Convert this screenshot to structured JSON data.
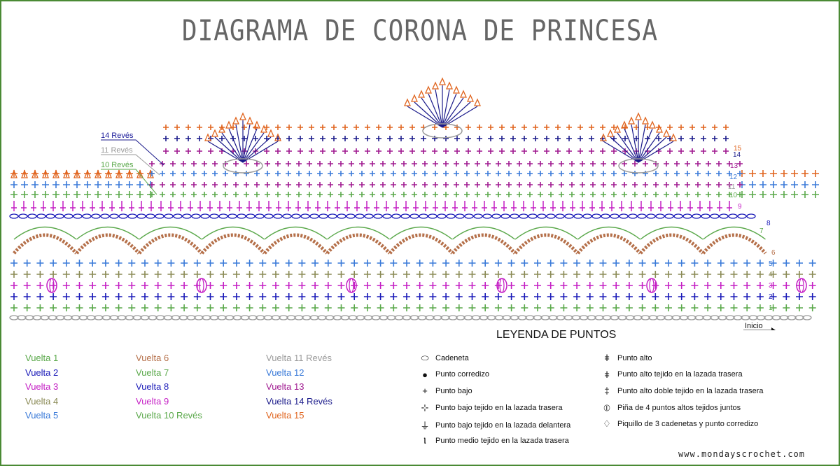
{
  "title": "DIAGRAMA DE CORONA DE PRINCESA",
  "legend_title": "LEYENDA DE PUNTOS",
  "start_label": "Inicio",
  "website": "www.mondayscrochet.com",
  "side_labels": [
    {
      "text": "14 Revés",
      "color": "#1a1a9a"
    },
    {
      "text": "11 Revés",
      "color": "#9a9a9a"
    },
    {
      "text": "10 Revés",
      "color": "#5aa84a"
    }
  ],
  "row_numbers": [
    "15",
    "14",
    "13",
    "12",
    "11",
    "10",
    "9",
    "8",
    "7",
    "6",
    "5",
    "4",
    "3",
    "2",
    "1"
  ],
  "rounds": [
    {
      "label": "Vuelta 1",
      "color": "#5aa84a"
    },
    {
      "label": "Vuelta 2",
      "color": "#1a1ab8"
    },
    {
      "label": "Vuelta 3",
      "color": "#c41ec4"
    },
    {
      "label": "Vuelta 4",
      "color": "#8a8a55"
    },
    {
      "label": "Vuelta 5",
      "color": "#3a7ad8"
    },
    {
      "label": "Vuelta 6",
      "color": "#b5704a"
    },
    {
      "label": "Vuelta 7",
      "color": "#5aa84a"
    },
    {
      "label": "Vuelta 8",
      "color": "#1a1ab8"
    },
    {
      "label": "Vuelta 9",
      "color": "#c41ec4"
    },
    {
      "label": "Vuelta 10 Revés",
      "color": "#5aa84a"
    },
    {
      "label": "Vuelta 11 Revés",
      "color": "#9a9a9a"
    },
    {
      "label": "Vuelta 12",
      "color": "#3a7ad8"
    },
    {
      "label": "Vuelta 13",
      "color": "#a01a90"
    },
    {
      "label": "Vuelta 14 Revés",
      "color": "#1a1a8a"
    },
    {
      "label": "Vuelta 15",
      "color": "#e0641e"
    }
  ],
  "stitches_left": [
    {
      "symbol": "⬭",
      "label": "Cadeneta"
    },
    {
      "symbol": "●",
      "label": "Punto corredizo"
    },
    {
      "symbol": "+",
      "label": "Punto bajo"
    },
    {
      "symbol": "⊹",
      "label": "Punto bajo tejido en la lazada trasera"
    },
    {
      "symbol": "⏚",
      "label": "Punto bajo tejido en la lazada delantera"
    },
    {
      "symbol": "Ⲓ",
      "label": "Punto medio tejido en la lazada trasera"
    }
  ],
  "stitches_right": [
    {
      "symbol": "ǂ",
      "label": "Punto alto"
    },
    {
      "symbol": "ǂ",
      "label": "Punto alto tejido en la lazada trasera"
    },
    {
      "symbol": "‡",
      "label": "Punto alto doble tejido en la lazada trasera"
    },
    {
      "symbol": "⦶",
      "label": "Piña de 4 puntos altos tejidos juntos"
    },
    {
      "symbol": "♢",
      "label": "Piquillo de 3 cadenetas y punto corredizo"
    }
  ]
}
